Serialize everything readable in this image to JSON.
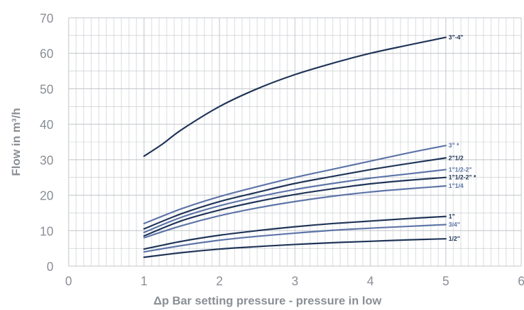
{
  "chart_data": {
    "type": "line",
    "title": "",
    "xlabel": "Δp Bar setting pressure - pressure in  low",
    "ylabel": "Flow in m³/h",
    "xlim": [
      0,
      6
    ],
    "ylim": [
      0,
      70
    ],
    "x_ticks": [
      "0",
      "1",
      "2",
      "3",
      "4",
      "5",
      "6"
    ],
    "y_ticks": [
      "0",
      "10",
      "20",
      "30",
      "40",
      "50",
      "60",
      "70"
    ],
    "grid": true,
    "colors": {
      "dark": "#1f3457",
      "light": "#5d74a8",
      "grid": "#bfc3c8",
      "text": "#8a8f96"
    },
    "series": [
      {
        "name": "3\"-4\"",
        "shade": "dark",
        "x": [
          1,
          1.25,
          1.5,
          2,
          2.5,
          3,
          3.5,
          4,
          4.5,
          5
        ],
        "y": [
          31,
          34.5,
          38.5,
          45,
          50,
          54,
          57.2,
          60,
          62.3,
          64.5
        ]
      },
      {
        "name": "3\" *",
        "shade": "light",
        "x": [
          1,
          1.5,
          2,
          2.5,
          3,
          3.5,
          4,
          4.5,
          5
        ],
        "y": [
          12,
          16.2,
          19.6,
          22.4,
          25,
          27.3,
          29.6,
          31.9,
          34
        ]
      },
      {
        "name": "2\"1/2",
        "shade": "dark",
        "x": [
          1,
          1.5,
          2,
          2.5,
          3,
          3.5,
          4,
          4.5,
          5
        ],
        "y": [
          10.5,
          14.8,
          18.2,
          20.8,
          23.3,
          25.3,
          27.2,
          28.9,
          30.5
        ]
      },
      {
        "name": "1\"1/2-2\"",
        "shade": "light",
        "x": [
          1,
          1.5,
          2,
          2.5,
          3,
          3.5,
          4,
          4.5,
          5
        ],
        "y": [
          9.5,
          13.8,
          17,
          19.5,
          21.6,
          23.3,
          24.8,
          26,
          27.2
        ]
      },
      {
        "name": "1\"1/2-2\" *",
        "shade": "dark",
        "x": [
          1,
          1.5,
          2,
          2.5,
          3,
          3.5,
          4,
          4.5,
          5
        ],
        "y": [
          8.5,
          12.8,
          15.8,
          18.2,
          20.2,
          21.8,
          23.2,
          24.2,
          25
        ]
      },
      {
        "name": "1\"1/4",
        "shade": "light",
        "x": [
          1,
          1.5,
          2,
          2.5,
          3,
          3.5,
          4,
          4.5,
          5
        ],
        "y": [
          8,
          11.4,
          14.2,
          16.4,
          18.2,
          19.7,
          20.9,
          21.8,
          22.6
        ]
      },
      {
        "name": "1\"",
        "shade": "dark",
        "x": [
          1,
          1.5,
          2,
          2.5,
          3,
          3.5,
          4,
          4.5,
          5
        ],
        "y": [
          4.8,
          7,
          8.7,
          10,
          11.1,
          12,
          12.7,
          13.4,
          14
        ]
      },
      {
        "name": "3/4\"",
        "shade": "light",
        "x": [
          1,
          1.5,
          2,
          2.5,
          3,
          3.5,
          4,
          4.5,
          5
        ],
        "y": [
          4,
          5.8,
          7.3,
          8.4,
          9.3,
          10.1,
          10.7,
          11.2,
          11.7
        ]
      },
      {
        "name": "1/2\"",
        "shade": "dark",
        "x": [
          1,
          1.5,
          2,
          2.5,
          3,
          3.5,
          4,
          4.5,
          5
        ],
        "y": [
          2.5,
          3.8,
          4.8,
          5.5,
          6.1,
          6.6,
          7,
          7.4,
          7.7
        ]
      }
    ]
  }
}
